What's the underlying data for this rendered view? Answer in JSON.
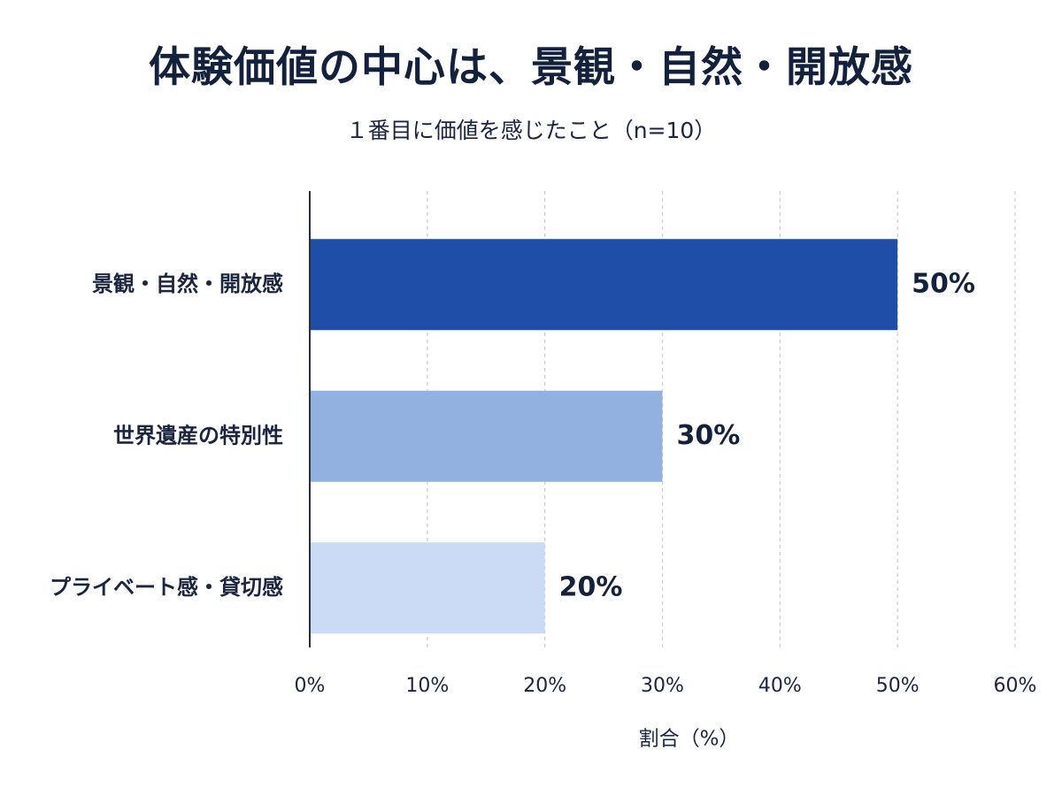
{
  "chart_data": {
    "type": "bar",
    "orientation": "horizontal",
    "title": "体験価値の中心は、景観・自然・開放感",
    "subtitle": "１番目に価値を感じたこと（n=10）",
    "xlabel": "割合（%）",
    "ylabel": "",
    "categories": [
      "景観・自然・開放感",
      "世界遺産の特別性",
      "プライベート感・貸切感"
    ],
    "values": [
      50,
      30,
      20
    ],
    "value_labels": [
      "50%",
      "30%",
      "20%"
    ],
    "bar_colors": [
      "#1f4ea8",
      "#93b1e0",
      "#cbdaf5"
    ],
    "xlim": [
      0,
      60
    ],
    "xticks": [
      0,
      10,
      20,
      30,
      40,
      50,
      60
    ],
    "xtick_labels": [
      "0%",
      "10%",
      "20%",
      "30%",
      "40%",
      "50%",
      "60%"
    ],
    "grid": "vertical-dashed",
    "legend": "none"
  }
}
